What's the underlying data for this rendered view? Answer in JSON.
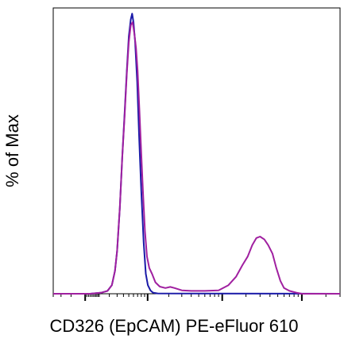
{
  "chart_data": {
    "type": "line",
    "title": "",
    "xlabel": "CD326 (EpCAM) PE-eFluor 610",
    "ylabel": "% of Max",
    "x_scale": "log",
    "x_axis_tick_labels": false,
    "y_axis_tick_labels": false,
    "xlim": [
      -300,
      300000
    ],
    "ylim": [
      0,
      100
    ],
    "grid": false,
    "legend": "none",
    "series": [
      {
        "color": "#1a1aa8",
        "points": [
          [
            -300,
            0
          ],
          [
            30,
            0
          ],
          [
            120,
            0.4
          ],
          [
            180,
            1
          ],
          [
            230,
            3
          ],
          [
            270,
            8
          ],
          [
            300,
            15
          ],
          [
            340,
            30
          ],
          [
            380,
            48
          ],
          [
            420,
            63
          ],
          [
            460,
            78
          ],
          [
            500,
            90
          ],
          [
            540,
            96
          ],
          [
            570,
            98
          ],
          [
            600,
            95
          ],
          [
            640,
            88
          ],
          [
            690,
            74
          ],
          [
            740,
            55
          ],
          [
            800,
            36
          ],
          [
            870,
            18
          ],
          [
            940,
            7
          ],
          [
            1010,
            3
          ],
          [
            1100,
            1.2
          ],
          [
            1200,
            0.4
          ],
          [
            1400,
            0.1
          ],
          [
            300000,
            0
          ]
        ]
      },
      {
        "color": "#a020a0",
        "points": [
          [
            -300,
            0
          ],
          [
            30,
            0
          ],
          [
            120,
            0.4
          ],
          [
            180,
            1
          ],
          [
            230,
            3
          ],
          [
            270,
            8
          ],
          [
            300,
            15
          ],
          [
            340,
            30
          ],
          [
            380,
            48
          ],
          [
            420,
            62
          ],
          [
            460,
            77
          ],
          [
            500,
            88
          ],
          [
            540,
            94
          ],
          [
            580,
            95
          ],
          [
            620,
            91
          ],
          [
            660,
            86
          ],
          [
            700,
            78
          ],
          [
            750,
            64
          ],
          [
            800,
            49
          ],
          [
            850,
            36
          ],
          [
            910,
            22
          ],
          [
            980,
            13
          ],
          [
            1060,
            9
          ],
          [
            1160,
            7
          ],
          [
            1300,
            4
          ],
          [
            1500,
            2.5
          ],
          [
            1800,
            2
          ],
          [
            2100,
            2.4
          ],
          [
            2400,
            2
          ],
          [
            3000,
            1.2
          ],
          [
            4000,
            1
          ],
          [
            6000,
            1
          ],
          [
            9000,
            1.2
          ],
          [
            12000,
            3
          ],
          [
            15000,
            6
          ],
          [
            18000,
            10
          ],
          [
            21000,
            13
          ],
          [
            24000,
            17
          ],
          [
            27000,
            19.5
          ],
          [
            30000,
            20
          ],
          [
            34000,
            19
          ],
          [
            38000,
            17
          ],
          [
            43000,
            14
          ],
          [
            48000,
            9
          ],
          [
            54000,
            4.5
          ],
          [
            60000,
            2
          ],
          [
            70000,
            1
          ],
          [
            85000,
            0.4
          ],
          [
            100000,
            0
          ],
          [
            300000,
            0
          ]
        ]
      }
    ]
  }
}
